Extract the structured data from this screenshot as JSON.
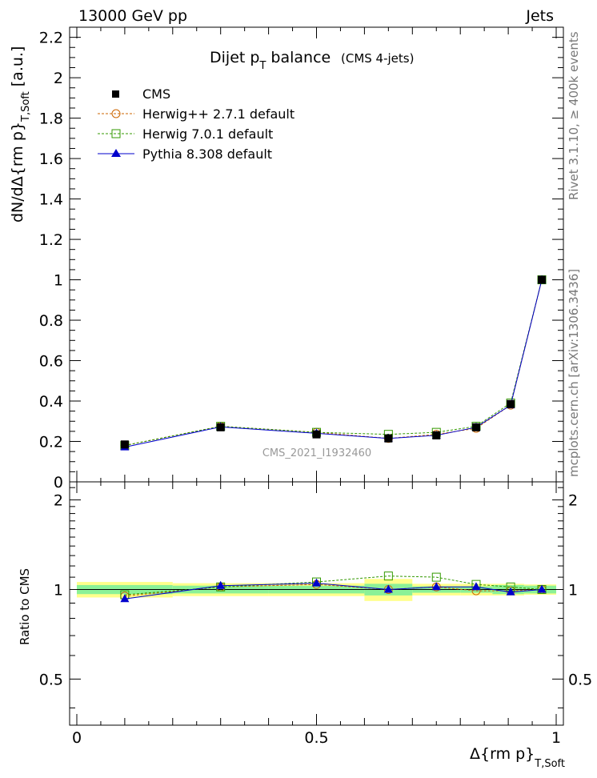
{
  "header": {
    "left": "13000 GeV pp",
    "right": "Jets"
  },
  "side_labels": {
    "rivet": "Rivet 3.1.10, ≥ 400k events",
    "mcplots": "mcplots.cern.ch [arXiv:1306.3436]"
  },
  "chart_data": {
    "type": "line",
    "title": "Dijet p",
    "title_sub": "T",
    "title_rest": " balance",
    "title_note": "(CMS 4-jets)",
    "watermark": "CMS_2021_I1932460",
    "xlabel": "Δ{rm p}",
    "xlabel_sub": "T,Soft",
    "ylabel": "dN/dΔ{rm p}",
    "ylabel_sub": "T,Soft",
    "ylabel_tail": " [a.u.]",
    "ratio_ylabel": "Ratio to CMS",
    "xlim": [
      -0.015,
      1.015
    ],
    "ylim": [
      0,
      2.25
    ],
    "ratio_ylim": [
      0.35,
      2.3
    ],
    "x_ticks": [
      "0",
      "0.5",
      "1"
    ],
    "y_ticks": [
      "0",
      "0.2",
      "0.4",
      "0.6",
      "0.8",
      "1",
      "1.2",
      "1.4",
      "1.6",
      "1.8",
      "2",
      "2.2"
    ],
    "ratio_ticks": [
      "0.5",
      "1",
      "2"
    ],
    "x": [
      0.1,
      0.3,
      0.5,
      0.65,
      0.75,
      0.833,
      0.905,
      0.97
    ],
    "bin_edges": [
      0,
      0.2,
      0.4,
      0.6,
      0.7,
      0.8,
      0.867,
      0.933,
      1.0
    ],
    "band_inner": [
      0.035,
      0.03,
      0.03,
      0.045,
      0.025,
      0.025,
      0.035,
      0.03
    ],
    "band_outer": [
      0.06,
      0.05,
      0.05,
      0.085,
      0.045,
      0.045,
      0.045,
      0.04
    ],
    "series": [
      {
        "name": "CMS",
        "color": "#000000",
        "values": [
          0.185,
          0.27,
          0.235,
          0.215,
          0.23,
          0.27,
          0.385,
          1.0
        ],
        "ratio": [
          1,
          1,
          1,
          1,
          1,
          1,
          1,
          1
        ]
      },
      {
        "name": "Herwig++ 2.7.1 default",
        "color": "#cc6600",
        "values": [
          0.18,
          0.275,
          0.245,
          0.215,
          0.235,
          0.265,
          0.38,
          1.0
        ],
        "ratio": [
          0.95,
          1.02,
          1.04,
          1.0,
          1.02,
          0.99,
          0.99,
          1.0
        ]
      },
      {
        "name": "Herwig 7.0.1 default",
        "color": "#339900",
        "values": [
          0.18,
          0.275,
          0.245,
          0.235,
          0.245,
          0.275,
          0.39,
          1.0
        ],
        "ratio": [
          0.96,
          1.02,
          1.06,
          1.11,
          1.1,
          1.04,
          1.02,
          1.0
        ]
      },
      {
        "name": "Pythia 8.308 default",
        "color": "#0000cc",
        "values": [
          0.172,
          0.272,
          0.24,
          0.215,
          0.23,
          0.27,
          0.38,
          1.0
        ],
        "ratio": [
          0.93,
          1.03,
          1.05,
          1.0,
          1.02,
          1.02,
          0.98,
          1.0
        ]
      }
    ]
  }
}
